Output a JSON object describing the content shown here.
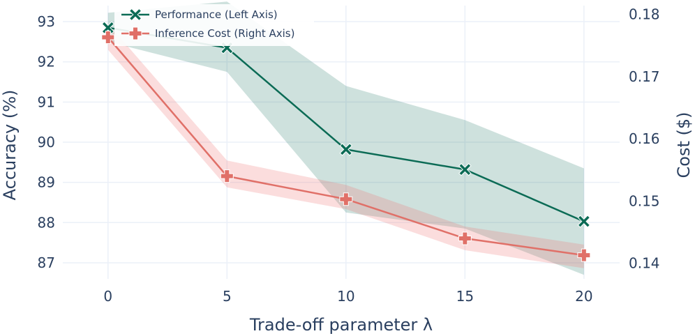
{
  "chart_data": {
    "type": "line",
    "x": [
      0,
      5,
      10,
      15,
      20
    ],
    "xlabel": "Trade-off parameter λ",
    "x_ticks": [
      "0",
      "5",
      "10",
      "15",
      "20"
    ],
    "xlim": [
      -1.9,
      21.5
    ],
    "grid": true,
    "legend_position": "top-left",
    "series": [
      {
        "name": "Performance (Left Axis)",
        "axis": "left",
        "color": "#0b6b55",
        "band_color": "rgba(11,107,85,0.2)",
        "marker": "x",
        "values": [
          92.85,
          92.35,
          89.82,
          89.32,
          88.03
        ],
        "upper": [
          93.22,
          93.5,
          91.4,
          90.55,
          89.35
        ],
        "lower": [
          92.5,
          91.75,
          88.25,
          87.85,
          86.7
        ]
      },
      {
        "name": "Inference Cost (Right Axis)",
        "axis": "right",
        "color": "#e07068",
        "band_color": "rgba(240,120,120,0.25)",
        "marker": "cross",
        "values": [
          0.1763,
          0.154,
          0.1503,
          0.144,
          0.1413
        ],
        "upper": [
          0.1785,
          0.1565,
          0.1526,
          0.1459,
          0.143
        ],
        "lower": [
          0.1743,
          0.1522,
          0.1487,
          0.1421,
          0.1392
        ]
      }
    ],
    "y_left": {
      "label": "Accuracy (%)",
      "range": [
        86.6,
        93.4
      ],
      "ticks": [
        87,
        88,
        89,
        90,
        91,
        92,
        93
      ],
      "tick_labels": [
        "87",
        "88",
        "89",
        "90",
        "91",
        "92",
        "93"
      ]
    },
    "y_right": {
      "label": "Cost ($)",
      "range": [
        0.1375,
        0.1814
      ],
      "ticks": [
        0.14,
        0.15,
        0.16,
        0.17,
        0.18
      ],
      "tick_labels": [
        "0.14",
        "0.15",
        "0.16",
        "0.17",
        "0.18"
      ]
    }
  }
}
